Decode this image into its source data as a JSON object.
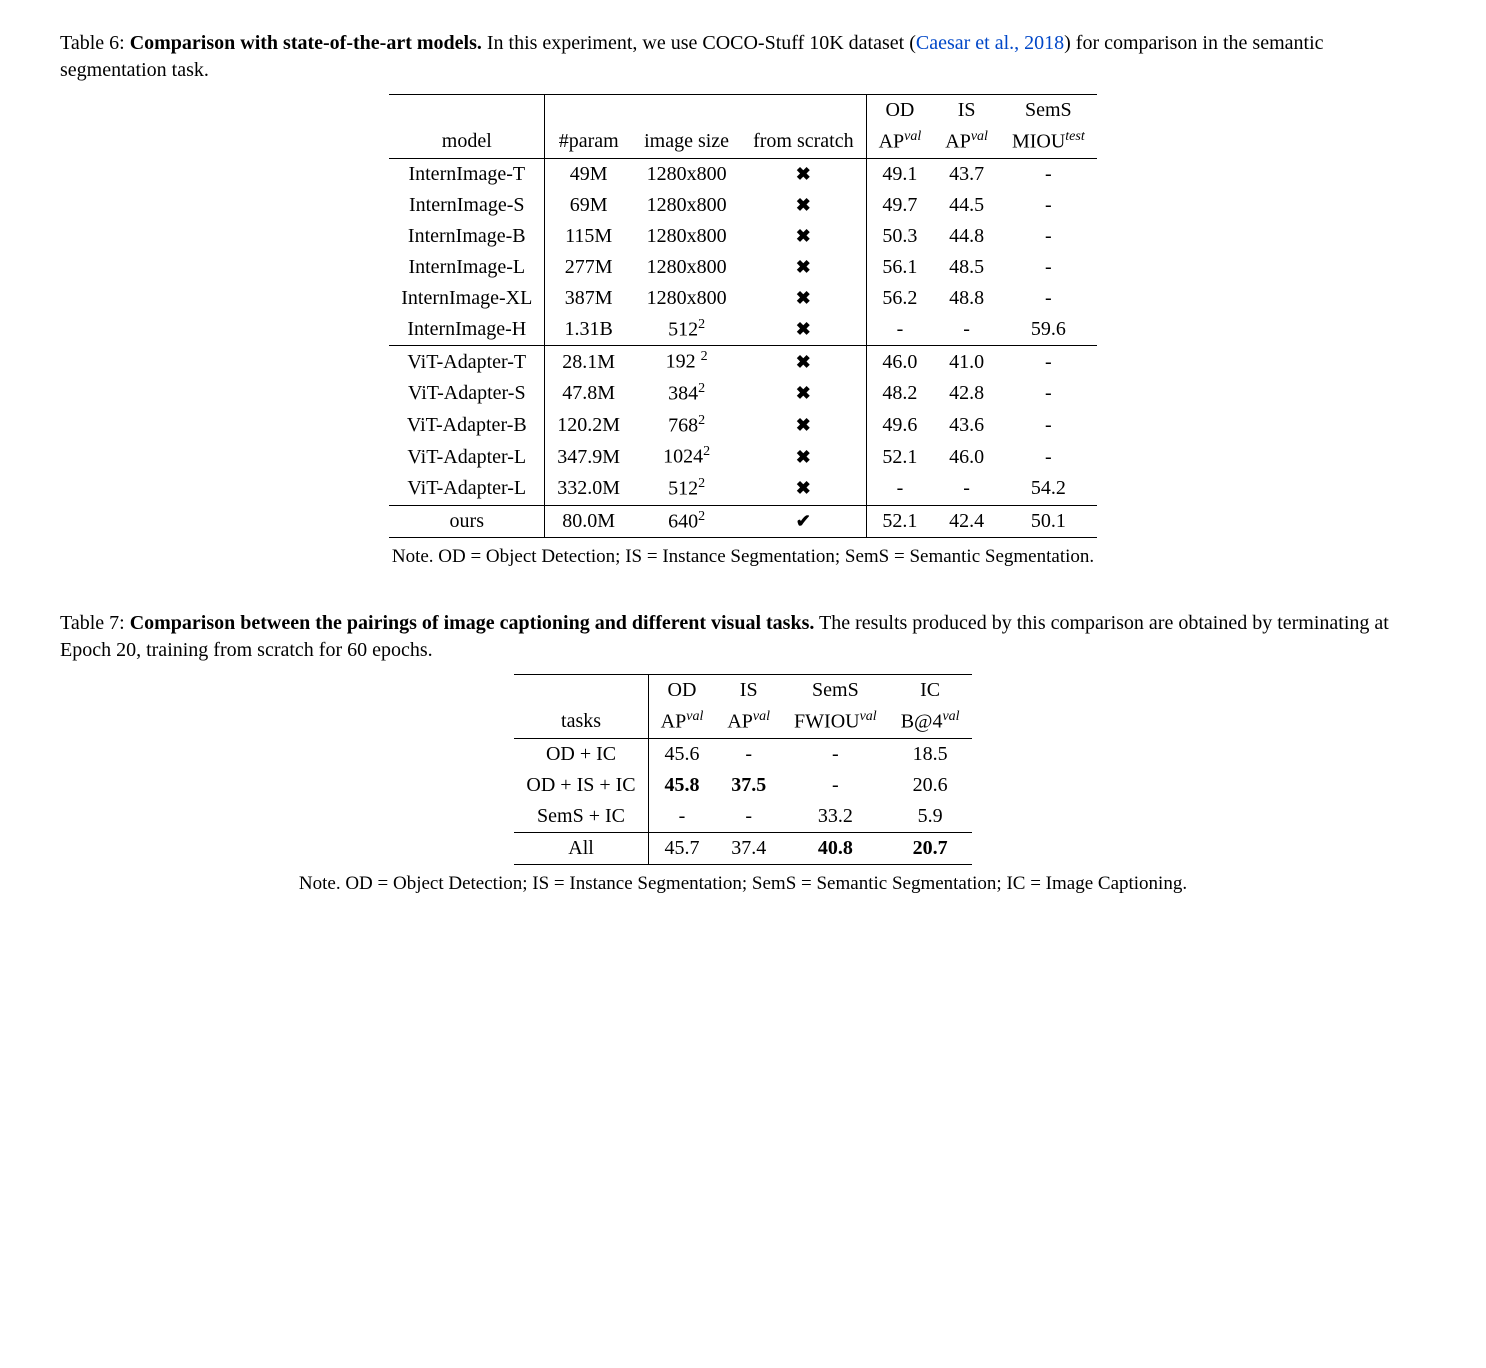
{
  "table6": {
    "caption_label": "Table 6:",
    "caption_title": "Comparison with state-of-the-art models.",
    "caption_rest1": " In this experiment, we use COCO-Stuff 10K dataset (",
    "caption_cite": "Caesar et al., 2018",
    "caption_rest2": ") for comparison in the semantic segmentation task.",
    "headers": {
      "model": "model",
      "param": "#param",
      "image_size": "image size",
      "from_scratch": "from scratch",
      "od": "OD",
      "od_sub": "AP",
      "od_sup": "val",
      "is": "IS",
      "is_sub": "AP",
      "is_sup": "val",
      "sems": "SemS",
      "sems_sub": "MIOU",
      "sems_sup": "test"
    },
    "groups": [
      {
        "rows": [
          {
            "model": "InternImage-T",
            "param": "49M",
            "size": "1280x800",
            "scratch": "x",
            "od": "49.1",
            "is": "43.7",
            "sems": "-"
          },
          {
            "model": "InternImage-S",
            "param": "69M",
            "size": "1280x800",
            "scratch": "x",
            "od": "49.7",
            "is": "44.5",
            "sems": "-"
          },
          {
            "model": "InternImage-B",
            "param": "115M",
            "size": "1280x800",
            "scratch": "x",
            "od": "50.3",
            "is": "44.8",
            "sems": "-"
          },
          {
            "model": "InternImage-L",
            "param": "277M",
            "size": "1280x800",
            "scratch": "x",
            "od": "56.1",
            "is": "48.5",
            "sems": "-"
          },
          {
            "model": "InternImage-XL",
            "param": "387M",
            "size": "1280x800",
            "scratch": "x",
            "od": "56.2",
            "is": "48.8",
            "sems": "-"
          },
          {
            "model": "InternImage-H",
            "param": "1.31B",
            "size_base": "512",
            "size_exp": "2",
            "scratch": "x",
            "od": "-",
            "is": "-",
            "sems": "59.6"
          }
        ]
      },
      {
        "rows": [
          {
            "model": "ViT-Adapter-T",
            "param": "28.1M",
            "size_base": "192 ",
            "size_exp": "2",
            "scratch": "x",
            "od": "46.0",
            "is": "41.0",
            "sems": "-"
          },
          {
            "model": "ViT-Adapter-S",
            "param": "47.8M",
            "size_base": "384",
            "size_exp": "2",
            "scratch": "x",
            "od": "48.2",
            "is": "42.8",
            "sems": "-"
          },
          {
            "model": "ViT-Adapter-B",
            "param": "120.2M",
            "size_base": "768",
            "size_exp": "2",
            "scratch": "x",
            "od": "49.6",
            "is": "43.6",
            "sems": "-"
          },
          {
            "model": "ViT-Adapter-L",
            "param": "347.9M",
            "size_base": "1024",
            "size_exp": "2",
            "scratch": "x",
            "od": "52.1",
            "is": "46.0",
            "sems": "-"
          },
          {
            "model": "ViT-Adapter-L",
            "param": "332.0M",
            "size_base": "512",
            "size_exp": "2",
            "scratch": "x",
            "od": "-",
            "is": "-",
            "sems": "54.2"
          }
        ]
      },
      {
        "rows": [
          {
            "model": "ours",
            "param": "80.0M",
            "size_base": "640",
            "size_exp": "2",
            "scratch": "check",
            "od": "52.1",
            "is": "42.4",
            "sems": "50.1"
          }
        ]
      }
    ],
    "note": "Note. OD = Object Detection; IS = Instance Segmentation; SemS = Semantic Segmentation."
  },
  "table7": {
    "caption_label": "Table 7:",
    "caption_title": "Comparison between the pairings of image captioning and different visual tasks.",
    "caption_rest": " The results produced by this comparison are obtained by terminating at Epoch 20, training from scratch for 60 epochs.",
    "headers": {
      "tasks": "tasks",
      "od": "OD",
      "od_sub": "AP",
      "od_sup": "val",
      "is": "IS",
      "is_sub": "AP",
      "is_sup": "val",
      "sems": "SemS",
      "sems_sub": "FWIOU",
      "sems_sup": "val",
      "ic": "IC",
      "ic_sub": "B@4",
      "ic_sup": "val"
    },
    "rows": [
      {
        "task": "OD + IC",
        "od": "45.6",
        "is": "-",
        "sems": "-",
        "ic": "18.5"
      },
      {
        "task": "OD + IS + IC",
        "od": "45.8",
        "od_bold": true,
        "is": "37.5",
        "is_bold": true,
        "sems": "-",
        "ic": "20.6"
      },
      {
        "task": "SemS + IC",
        "od": "-",
        "is": "-",
        "sems": "33.2",
        "ic": "5.9"
      }
    ],
    "last": {
      "task": "All",
      "od": "45.7",
      "is": "37.4",
      "sems": "40.8",
      "sems_bold": true,
      "ic": "20.7",
      "ic_bold": true
    },
    "note": "Note. OD = Object Detection; IS = Instance Segmentation; SemS = Semantic Segmentation; IC = Image Captioning."
  },
  "marks": {
    "x": "✖",
    "check": "✔"
  }
}
